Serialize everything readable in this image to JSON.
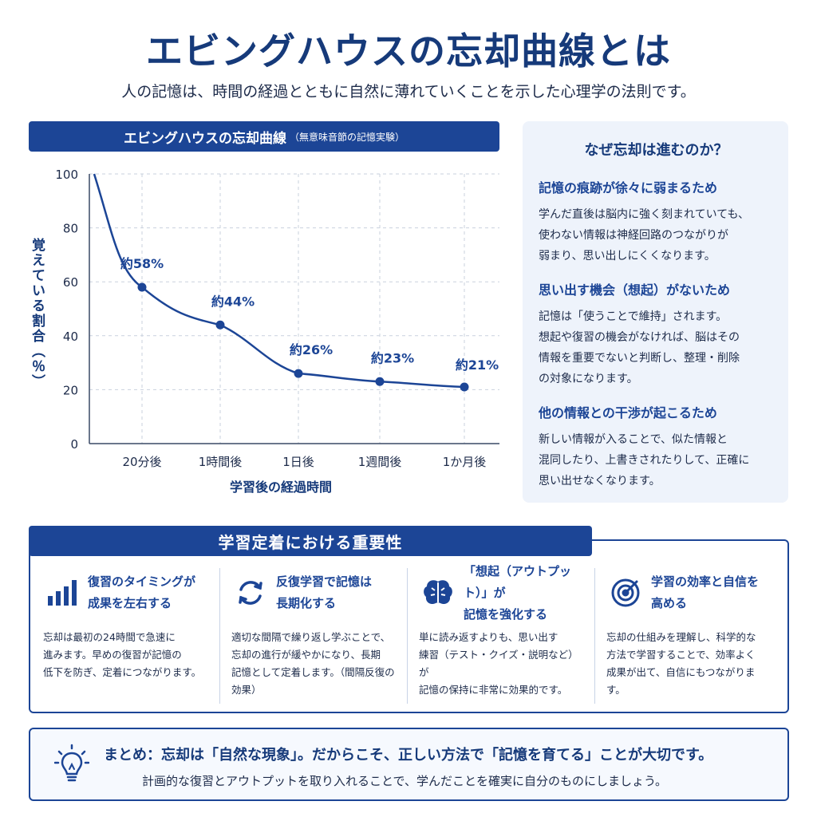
{
  "header": {
    "title": "エビングハウスの忘却曲線とは",
    "subtitle": "人の記憶は、時間の経過とともに自然に薄れていくことを示した心理学の法則です。"
  },
  "chart_panel": {
    "heading": "エビングハウスの忘却曲線",
    "heading_note": "（無意味音節の記憶実験）"
  },
  "chart_data": {
    "type": "line",
    "title": "エビングハウスの忘却曲線",
    "xlabel": "学習後の経過時間",
    "ylabel": "覚えている割合（％）",
    "categories": [
      "20分後",
      "1時間後",
      "1日後",
      "1週間後",
      "1か月後"
    ],
    "series": [
      {
        "values": [
          58,
          44,
          26,
          23,
          21
        ],
        "labels": [
          "約58%",
          "約44%",
          "約26%",
          "約23%",
          "約21%"
        ]
      }
    ],
    "start_value": 100,
    "ylim": [
      0,
      100
    ],
    "yticks": [
      "0",
      "20",
      "40",
      "60",
      "80",
      "100"
    ],
    "grid": true,
    "color": "#1c4596"
  },
  "side_panel": {
    "heading": "なぜ忘却は進むのか？",
    "items": [
      {
        "title": "記憶の痕跡が徐々に弱まるため",
        "body": "学んだ直後は脳内に強く刻まれていても、\n使わない情報は神経回路のつながりが\n弱まり、思い出しにくくなります。"
      },
      {
        "title": "思い出す機会（想起）がないため",
        "body": "記憶は「使うことで維持」されます。\n想起や復習の機会がなければ、脳はその\n情報を重要でないと判断し、整理・削除\nの対象になります。"
      },
      {
        "title": "他の情報との干渉が起こるため",
        "body": "新しい情報が入ることで、似た情報と\n混同したり、上書きされたりして、正確に\n思い出せなくなります。"
      }
    ]
  },
  "importance": {
    "heading": "学習定着における重要性",
    "cards": [
      {
        "icon": "bar-chart-icon",
        "title": "復習のタイミングが\n成果を左右する",
        "body": "忘却は最初の24時間で急速に\n進みます。早めの復習が記憶の\n低下を防ぎ、定着につながります。"
      },
      {
        "icon": "refresh-icon",
        "title": "反復学習で記憶は\n長期化する",
        "body": "適切な間隔で繰り返し学ぶことで、\n忘却の進行が緩やかになり、長期\n記憶として定着します。（間隔反復の\n効果）"
      },
      {
        "icon": "brain-icon",
        "title": "「想起（アウトプット）」が\n記憶を強化する",
        "body": "単に読み返すよりも、思い出す\n練習（テスト・クイズ・説明など）が\n記憶の保持に非常に効果的です。"
      },
      {
        "icon": "target-icon",
        "title": "学習の効率と自信を\n高める",
        "body": "忘却の仕組みを理解し、科学的な\n方法で学習することで、効率よく\n成果が出て、自信にもつながります。"
      }
    ]
  },
  "summary": {
    "line1": "まとめ：忘却は「自然な現象」。だからこそ、正しい方法で「記憶を育てる」ことが大切です。",
    "line2": "計画的な復習とアウトプットを取り入れることで、学んだことを確実に自分のものにしましょう。"
  },
  "colors": {
    "primary": "#1c4596",
    "title": "#163a7a",
    "panel_bg": "#eef3fb"
  }
}
